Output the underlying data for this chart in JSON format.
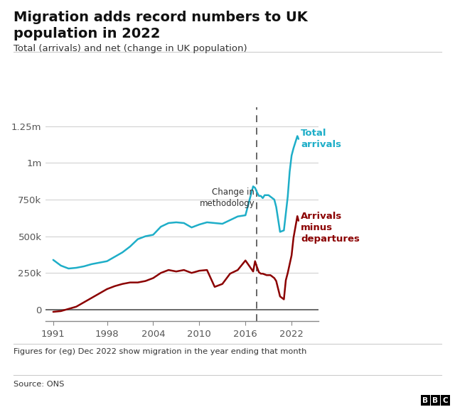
{
  "title_line1": "Migration adds record numbers to UK",
  "title_line2": "population in 2022",
  "subtitle": "Total (arrivals) and net (change in UK population)",
  "footnote": "Figures for (eg) Dec 2022 show migration in the year ending that month",
  "source": "Source: ONS",
  "methodology_label": "Change in\nmethodology",
  "methodology_x": 2017.5,
  "label_arrivals": "Total\narrivals",
  "label_net": "Arrivals\nminus\ndepartures",
  "color_arrivals": "#1EAEC8",
  "color_net": "#8B0000",
  "color_dashed": "#666666",
  "ylim": [
    -80000,
    1380000
  ],
  "yticks": [
    0,
    250000,
    500000,
    750000,
    1000000,
    1250000
  ],
  "ytick_labels": [
    "0",
    "250k",
    "500k",
    "750k",
    "1m",
    "1.25m"
  ],
  "xticks": [
    1991,
    1998,
    2004,
    2010,
    2016,
    2022
  ],
  "xlim_left": 1990.0,
  "xlim_right": 2025.5,
  "total_arrivals_x": [
    1991,
    1992,
    1993,
    1994,
    1995,
    1996,
    1997,
    1998,
    1999,
    2000,
    2001,
    2002,
    2003,
    2004,
    2005,
    2006,
    2007,
    2008,
    2009,
    2010,
    2011,
    2012,
    2013,
    2014,
    2015,
    2016,
    2017.0,
    2017.25,
    2017.5,
    2017.75,
    2018.0,
    2018.25,
    2018.5,
    2018.75,
    2019.0,
    2019.25,
    2019.5,
    2019.75,
    2020.0,
    2020.5,
    2021.0,
    2021.5,
    2021.75,
    2022.0,
    2022.25,
    2022.75,
    2022.9
  ],
  "total_arrivals_y": [
    339000,
    300000,
    280000,
    285000,
    295000,
    310000,
    320000,
    330000,
    360000,
    390000,
    430000,
    480000,
    500000,
    510000,
    565000,
    590000,
    595000,
    590000,
    560000,
    580000,
    595000,
    590000,
    585000,
    610000,
    635000,
    643000,
    840000,
    830000,
    800000,
    775000,
    775000,
    760000,
    780000,
    780000,
    780000,
    770000,
    760000,
    750000,
    700000,
    530000,
    540000,
    770000,
    940000,
    1050000,
    1100000,
    1183000,
    1163000
  ],
  "net_x": [
    1991,
    1992,
    1993,
    1994,
    1995,
    1996,
    1997,
    1998,
    1999,
    2000,
    2001,
    2002,
    2003,
    2004,
    2005,
    2006,
    2007,
    2008,
    2009,
    2010,
    2011,
    2012,
    2013,
    2014,
    2015,
    2016,
    2017.0,
    2017.25,
    2017.5,
    2017.75,
    2018.0,
    2018.25,
    2018.5,
    2018.75,
    2019.0,
    2019.25,
    2019.5,
    2019.75,
    2020.0,
    2020.5,
    2021.0,
    2021.25,
    2021.5,
    2022.0,
    2022.25,
    2022.75,
    2022.9
  ],
  "net_y": [
    -15000,
    -10000,
    5000,
    20000,
    50000,
    80000,
    110000,
    140000,
    160000,
    175000,
    185000,
    185000,
    195000,
    215000,
    250000,
    270000,
    260000,
    270000,
    250000,
    265000,
    270000,
    155000,
    175000,
    245000,
    270000,
    335000,
    260000,
    330000,
    290000,
    255000,
    245000,
    245000,
    240000,
    235000,
    235000,
    235000,
    225000,
    215000,
    195000,
    90000,
    70000,
    200000,
    250000,
    370000,
    490000,
    637000,
    606000
  ]
}
